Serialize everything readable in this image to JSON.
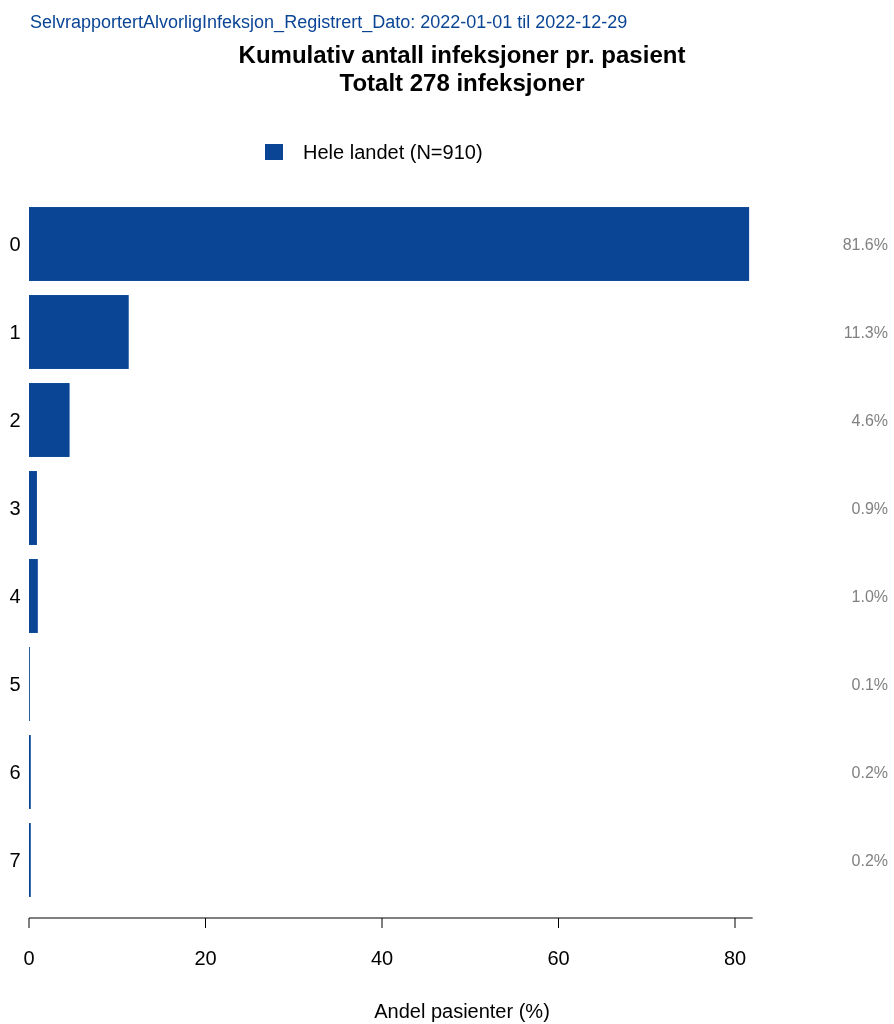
{
  "chart_data": {
    "type": "bar",
    "orientation": "horizontal",
    "subtitle": "SelvrapportertAlvorligInfeksjon_Registrert_Dato: 2022-01-01 til 2022-12-29",
    "title": "Kumulativ antall infeksjoner pr. pasient\nTotalt 278 infeksjoner",
    "xlabel": "Andel pasienter (%)",
    "categories": [
      "0",
      "1",
      "2",
      "3",
      "4",
      "5",
      "6",
      "7"
    ],
    "series": [
      {
        "name": "Hele landet (N=910)",
        "color": "#0a4595",
        "values": [
          81.6,
          11.3,
          4.6,
          0.9,
          1.0,
          0.1,
          0.2,
          0.2
        ],
        "value_labels": [
          "81.6%",
          "11.3%",
          "4.6%",
          "0.9%",
          "1.0%",
          "0.1%",
          "0.2%",
          "0.2%"
        ]
      }
    ],
    "xlim": [
      0,
      82
    ],
    "xticks": [
      0,
      20,
      40,
      60,
      80
    ],
    "legend": "top",
    "grid": false
  }
}
